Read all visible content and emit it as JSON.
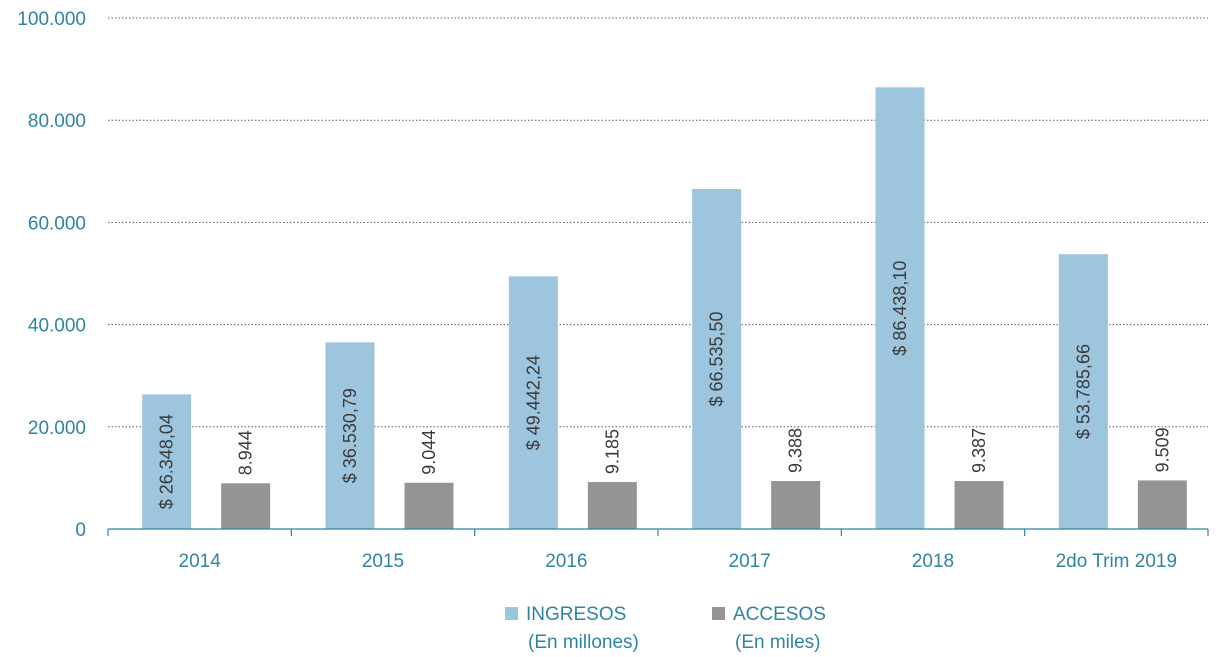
{
  "chart_data": {
    "type": "bar",
    "categories": [
      "2014",
      "2015",
      "2016",
      "2017",
      "2018",
      "2do Trim 2019"
    ],
    "series": [
      {
        "name": "INGRESOS",
        "name_sub": "(En millones)",
        "values": [
          26348.04,
          36530.79,
          49442.24,
          66535.5,
          86438.1,
          53785.66
        ],
        "labels": [
          "$ 26.348,04",
          "$ 36.530,79",
          "$ 49.442,24",
          "$ 66.535,50",
          "$ 86.438,10",
          "$ 53.785,66"
        ],
        "color": "#9dc5dd"
      },
      {
        "name": "ACCESOS",
        "name_sub": "(En miles)",
        "values": [
          8944,
          9044,
          9185,
          9388,
          9387,
          9509
        ],
        "labels": [
          "8.944",
          "9.044",
          "9.185",
          "9.388",
          "9.387",
          "9.509"
        ],
        "color": "#949494"
      }
    ],
    "yticks": [
      0,
      20000,
      40000,
      60000,
      80000,
      100000
    ],
    "ytick_labels": [
      "0",
      "20.000",
      "40.000",
      "60.000",
      "80.000",
      "100.000"
    ],
    "ylim": [
      0,
      100000
    ],
    "grid": true,
    "legend_position": "bottom-center",
    "axis_color": "#2f83a3",
    "title": "",
    "xlabel": "",
    "ylabel": ""
  }
}
